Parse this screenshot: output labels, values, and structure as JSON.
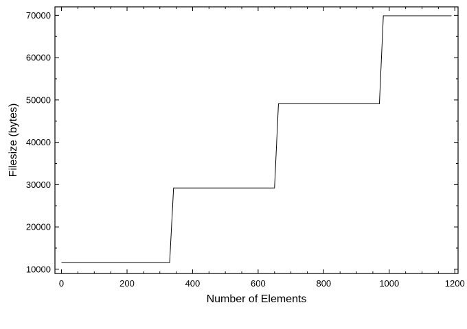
{
  "chart_data": {
    "type": "line",
    "title": "",
    "xlabel": "Number of Elements",
    "ylabel": "Filesize (bytes)",
    "xlim": [
      -20,
      1210
    ],
    "ylim": [
      9000,
      72000
    ],
    "x_ticks": [
      0,
      200,
      400,
      600,
      800,
      1000,
      1200
    ],
    "x_tick_labels": [
      "0",
      "200",
      "400",
      "600",
      "800",
      "1000",
      "1200"
    ],
    "y_ticks": [
      10000,
      20000,
      30000,
      40000,
      50000,
      60000,
      70000
    ],
    "y_tick_labels": [
      "10000",
      "20000",
      "30000",
      "40000",
      "50000",
      "60000",
      "70000"
    ],
    "grid": false,
    "legend": "none",
    "series": [
      {
        "color": "#000000",
        "x": [
          0,
          330,
          342,
          650,
          662,
          970,
          982,
          1190
        ],
        "y": [
          11600,
          11600,
          29200,
          29200,
          49100,
          49100,
          69900,
          69900
        ]
      }
    ]
  }
}
